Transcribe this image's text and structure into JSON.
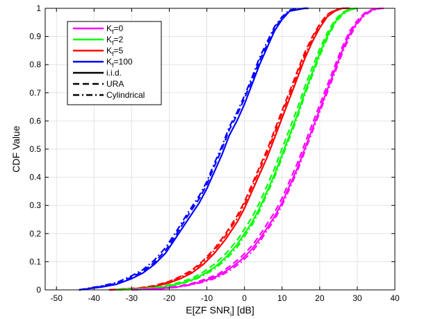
{
  "chart_data": {
    "type": "line",
    "xlabel": "E[ZF SNR",
    "xlabel_sub": "i",
    "xlabel_end": "] [dB]",
    "ylabel": "CDF Value",
    "xlim": [
      -53,
      40
    ],
    "ylim": [
      0,
      1
    ],
    "xticks": [
      "-50",
      "-40",
      "-30",
      "-20",
      "-10",
      "0",
      "10",
      "20",
      "30",
      "40"
    ],
    "yticks": [
      "0",
      "0.1",
      "0.2",
      "0.3",
      "0.4",
      "0.5",
      "0.6",
      "0.7",
      "0.8",
      "0.9",
      "1"
    ],
    "grid": true,
    "legend_position": "top-left",
    "legend": [
      {
        "prefix": "K",
        "sub": "f",
        "suffix": "=0",
        "color": "#ff00ff",
        "style": "solid"
      },
      {
        "prefix": "K",
        "sub": "f",
        "suffix": "=2",
        "color": "#00ff00",
        "style": "solid"
      },
      {
        "prefix": "K",
        "sub": "f",
        "suffix": "=5",
        "color": "#ff0000",
        "style": "solid"
      },
      {
        "prefix": "K",
        "sub": "f",
        "suffix": "=100",
        "color": "#0000ff",
        "style": "solid"
      },
      {
        "prefix": "i.i.d.",
        "sub": "",
        "suffix": "",
        "color": "#000000",
        "style": "solid"
      },
      {
        "prefix": "URA",
        "sub": "",
        "suffix": "",
        "color": "#000000",
        "style": "dashed"
      },
      {
        "prefix": "Cylindrical",
        "sub": "",
        "suffix": "",
        "color": "#000000",
        "style": "dashdot"
      }
    ],
    "series": [
      {
        "color": "#0000ff",
        "style": "solid",
        "x": [
          -44,
          -38,
          -34,
          -30,
          -27,
          -24,
          -21,
          -18,
          -15,
          -12,
          -10,
          -8,
          -6,
          -4,
          -2,
          0,
          2,
          4,
          6,
          8,
          10,
          12,
          14,
          16,
          17
        ],
        "y": [
          0,
          0.01,
          0.02,
          0.04,
          0.06,
          0.09,
          0.13,
          0.19,
          0.25,
          0.31,
          0.36,
          0.42,
          0.48,
          0.55,
          0.6,
          0.66,
          0.73,
          0.8,
          0.86,
          0.92,
          0.96,
          0.99,
          0.995,
          1,
          1
        ]
      },
      {
        "color": "#0000ff",
        "style": "dashed",
        "x": [
          -44,
          -38,
          -34,
          -30,
          -27,
          -24,
          -21,
          -18,
          -15,
          -12,
          -10,
          -8,
          -6,
          -4,
          -2,
          0,
          2,
          4,
          6,
          8,
          10,
          12,
          14,
          16,
          17
        ],
        "y": [
          0,
          0.012,
          0.023,
          0.045,
          0.066,
          0.097,
          0.14,
          0.2,
          0.265,
          0.325,
          0.375,
          0.44,
          0.5,
          0.57,
          0.62,
          0.68,
          0.745,
          0.815,
          0.87,
          0.93,
          0.965,
          0.992,
          0.997,
          1,
          1
        ]
      },
      {
        "color": "#0000ff",
        "style": "dashdot",
        "x": [
          -44,
          -38,
          -34,
          -30,
          -27,
          -24,
          -21,
          -18,
          -15,
          -12,
          -10,
          -8,
          -6,
          -4,
          -2,
          0,
          2,
          4,
          6,
          8,
          10,
          12,
          14,
          16,
          17
        ],
        "y": [
          0,
          0.014,
          0.026,
          0.05,
          0.072,
          0.105,
          0.15,
          0.21,
          0.275,
          0.335,
          0.385,
          0.45,
          0.51,
          0.58,
          0.63,
          0.69,
          0.755,
          0.825,
          0.88,
          0.935,
          0.97,
          0.994,
          0.998,
          1,
          1
        ]
      },
      {
        "color": "#ff0000",
        "style": "solid",
        "x": [
          -36,
          -28,
          -24,
          -20,
          -17,
          -14,
          -11,
          -8,
          -5,
          -2,
          0,
          2,
          4,
          6,
          8,
          10,
          12,
          14,
          16,
          18,
          20,
          22,
          24,
          26,
          28
        ],
        "y": [
          0,
          0.005,
          0.012,
          0.025,
          0.04,
          0.06,
          0.09,
          0.13,
          0.18,
          0.24,
          0.29,
          0.35,
          0.41,
          0.47,
          0.54,
          0.61,
          0.68,
          0.75,
          0.82,
          0.88,
          0.93,
          0.97,
          0.99,
          1,
          1
        ]
      },
      {
        "color": "#ff0000",
        "style": "dashed",
        "x": [
          -36,
          -28,
          -24,
          -20,
          -17,
          -14,
          -11,
          -8,
          -5,
          -2,
          0,
          2,
          4,
          6,
          8,
          10,
          12,
          14,
          16,
          18,
          20,
          22,
          24,
          26,
          28
        ],
        "y": [
          0,
          0.007,
          0.015,
          0.03,
          0.048,
          0.07,
          0.104,
          0.146,
          0.2,
          0.262,
          0.313,
          0.375,
          0.437,
          0.497,
          0.567,
          0.637,
          0.705,
          0.775,
          0.842,
          0.898,
          0.944,
          0.978,
          0.994,
          1,
          1
        ]
      },
      {
        "color": "#ff0000",
        "style": "dashdot",
        "x": [
          -36,
          -28,
          -24,
          -20,
          -17,
          -14,
          -11,
          -8,
          -5,
          -2,
          0,
          2,
          4,
          6,
          8,
          10,
          12,
          14,
          16,
          18,
          20,
          22,
          24,
          26,
          28
        ],
        "y": [
          0,
          0.006,
          0.014,
          0.028,
          0.045,
          0.066,
          0.098,
          0.14,
          0.192,
          0.253,
          0.304,
          0.365,
          0.427,
          0.487,
          0.557,
          0.627,
          0.695,
          0.765,
          0.833,
          0.891,
          0.939,
          0.975,
          0.992,
          1,
          1
        ]
      },
      {
        "color": "#00ff00",
        "style": "solid",
        "x": [
          -34,
          -26,
          -22,
          -18,
          -14,
          -11,
          -8,
          -5,
          -2,
          0,
          2,
          4,
          6,
          8,
          10,
          12,
          14,
          16,
          18,
          20,
          22,
          24,
          26,
          28,
          30
        ],
        "y": [
          0,
          0.005,
          0.01,
          0.02,
          0.035,
          0.055,
          0.08,
          0.115,
          0.16,
          0.2,
          0.24,
          0.29,
          0.35,
          0.41,
          0.48,
          0.55,
          0.62,
          0.7,
          0.77,
          0.84,
          0.9,
          0.95,
          0.98,
          0.995,
          1
        ]
      },
      {
        "color": "#00ff00",
        "style": "dashed",
        "x": [
          -34,
          -26,
          -22,
          -18,
          -14,
          -11,
          -8,
          -5,
          -2,
          0,
          2,
          4,
          6,
          8,
          10,
          12,
          14,
          16,
          18,
          20,
          22,
          24,
          26,
          28,
          30
        ],
        "y": [
          0,
          0.006,
          0.012,
          0.024,
          0.041,
          0.063,
          0.091,
          0.128,
          0.175,
          0.216,
          0.258,
          0.309,
          0.37,
          0.431,
          0.502,
          0.572,
          0.642,
          0.72,
          0.789,
          0.855,
          0.912,
          0.958,
          0.985,
          0.997,
          1
        ]
      },
      {
        "color": "#00ff00",
        "style": "dashdot",
        "x": [
          -34,
          -26,
          -22,
          -18,
          -14,
          -11,
          -8,
          -5,
          -2,
          0,
          2,
          4,
          6,
          8,
          10,
          12,
          14,
          16,
          18,
          20,
          22,
          24,
          26,
          28,
          30
        ],
        "y": [
          0,
          0.004,
          0.009,
          0.018,
          0.032,
          0.05,
          0.074,
          0.107,
          0.15,
          0.19,
          0.23,
          0.28,
          0.34,
          0.4,
          0.47,
          0.54,
          0.61,
          0.69,
          0.76,
          0.83,
          0.892,
          0.945,
          0.977,
          0.994,
          1
        ]
      },
      {
        "color": "#ff00ff",
        "style": "solid",
        "x": [
          -30,
          -22,
          -18,
          -14,
          -10,
          -7,
          -4,
          -1,
          2,
          4,
          6,
          8,
          10,
          12,
          14,
          16,
          18,
          20,
          22,
          24,
          26,
          28,
          30,
          32,
          34,
          36
        ],
        "y": [
          0,
          0.005,
          0.01,
          0.02,
          0.035,
          0.05,
          0.075,
          0.105,
          0.145,
          0.18,
          0.22,
          0.26,
          0.31,
          0.37,
          0.43,
          0.5,
          0.57,
          0.64,
          0.71,
          0.78,
          0.85,
          0.91,
          0.95,
          0.98,
          0.995,
          1
        ]
      },
      {
        "color": "#ff00ff",
        "style": "dashed",
        "x": [
          -30,
          -22,
          -18,
          -14,
          -10,
          -7,
          -4,
          -1,
          2,
          4,
          6,
          8,
          10,
          12,
          14,
          16,
          18,
          20,
          22,
          24,
          26,
          28,
          30,
          32,
          34,
          36
        ],
        "y": [
          0,
          0.006,
          0.012,
          0.023,
          0.04,
          0.056,
          0.083,
          0.115,
          0.157,
          0.193,
          0.234,
          0.275,
          0.326,
          0.387,
          0.448,
          0.518,
          0.588,
          0.657,
          0.726,
          0.795,
          0.863,
          0.92,
          0.957,
          0.984,
          0.996,
          1
        ]
      },
      {
        "color": "#ff00ff",
        "style": "dashdot",
        "x": [
          -30,
          -22,
          -18,
          -14,
          -10,
          -7,
          -4,
          -1,
          2,
          4,
          6,
          8,
          10,
          12,
          14,
          16,
          18,
          20,
          22,
          24,
          26,
          28,
          30,
          32,
          34,
          36,
          37
        ],
        "y": [
          0,
          0.004,
          0.009,
          0.018,
          0.031,
          0.045,
          0.068,
          0.097,
          0.135,
          0.17,
          0.21,
          0.25,
          0.3,
          0.36,
          0.42,
          0.49,
          0.56,
          0.63,
          0.7,
          0.77,
          0.84,
          0.9,
          0.945,
          0.976,
          0.992,
          0.999,
          1
        ]
      }
    ]
  }
}
